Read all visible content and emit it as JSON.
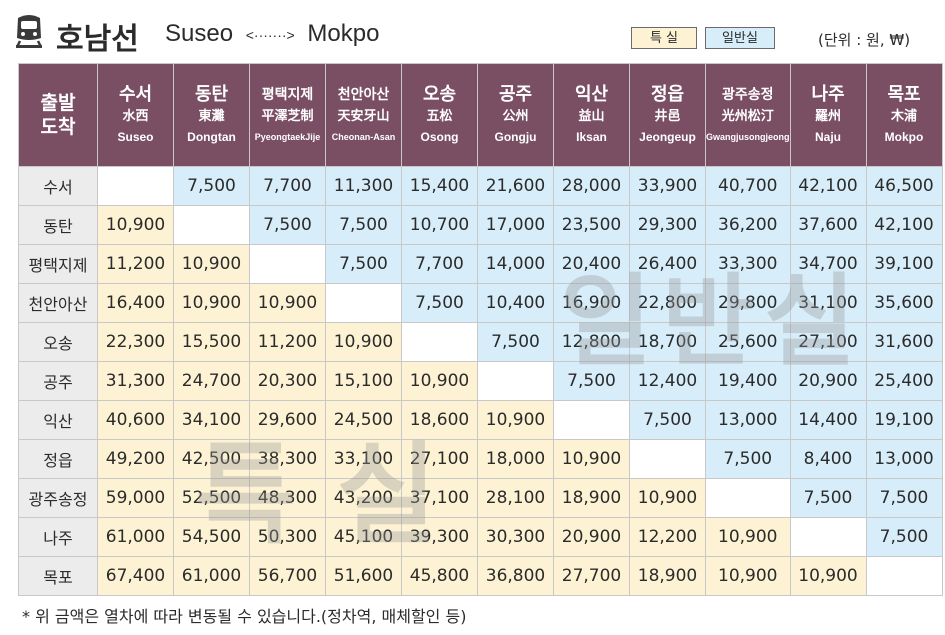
{
  "title": {
    "line_name": "호남선",
    "origin": "Suseo",
    "arrow": "<·······>",
    "terminus": "Mokpo"
  },
  "legend": {
    "special": "특 실",
    "general": "일반실",
    "unit": "(단위 : 원, ₩)"
  },
  "corner": {
    "top": "출발",
    "bottom": "도착"
  },
  "stations": [
    {
      "ko": "수서",
      "hanja": "水西",
      "en": "Suseo"
    },
    {
      "ko": "동탄",
      "hanja": "東灘",
      "en": "Dongtan"
    },
    {
      "ko": "평택지제",
      "hanja": "平澤芝制",
      "en": "PyeongtaekJije"
    },
    {
      "ko": "천안아산",
      "hanja": "天安牙山",
      "en": "Cheonan-Asan"
    },
    {
      "ko": "오송",
      "hanja": "五松",
      "en": "Osong"
    },
    {
      "ko": "공주",
      "hanja": "公州",
      "en": "Gongju"
    },
    {
      "ko": "익산",
      "hanja": "益山",
      "en": "Iksan"
    },
    {
      "ko": "정읍",
      "hanja": "井邑",
      "en": "Jeongeup"
    },
    {
      "ko": "광주송정",
      "hanja": "光州松汀",
      "en": "Gwangjusongjeong"
    },
    {
      "ko": "나주",
      "hanja": "羅州",
      "en": "Naju"
    },
    {
      "ko": "목포",
      "hanja": "木浦",
      "en": "Mokpo"
    }
  ],
  "rows": [
    {
      "station": "수서",
      "fares": [
        "",
        "7,500",
        "7,700",
        "11,300",
        "15,400",
        "21,600",
        "28,000",
        "33,900",
        "40,700",
        "42,100",
        "46,500"
      ]
    },
    {
      "station": "동탄",
      "fares": [
        "10,900",
        "",
        "7,500",
        "7,500",
        "10,700",
        "17,000",
        "23,500",
        "29,300",
        "36,200",
        "37,600",
        "42,100"
      ]
    },
    {
      "station": "평택지제",
      "fares": [
        "11,200",
        "10,900",
        "",
        "7,500",
        "7,700",
        "14,000",
        "20,400",
        "26,400",
        "33,300",
        "34,700",
        "39,100"
      ]
    },
    {
      "station": "천안아산",
      "fares": [
        "16,400",
        "10,900",
        "10,900",
        "",
        "7,500",
        "10,400",
        "16,900",
        "22,800",
        "29,800",
        "31,100",
        "35,600"
      ]
    },
    {
      "station": "오송",
      "fares": [
        "22,300",
        "15,500",
        "11,200",
        "10,900",
        "",
        "7,500",
        "12,800",
        "18,700",
        "25,600",
        "27,100",
        "31,600"
      ]
    },
    {
      "station": "공주",
      "fares": [
        "31,300",
        "24,700",
        "20,300",
        "15,100",
        "10,900",
        "",
        "7,500",
        "12,400",
        "19,400",
        "20,900",
        "25,400"
      ]
    },
    {
      "station": "익산",
      "fares": [
        "40,600",
        "34,100",
        "29,600",
        "24,500",
        "18,600",
        "10,900",
        "",
        "7,500",
        "13,000",
        "14,400",
        "19,100"
      ]
    },
    {
      "station": "정읍",
      "fares": [
        "49,200",
        "42,500",
        "38,300",
        "33,100",
        "27,100",
        "18,000",
        "10,900",
        "",
        "7,500",
        "8,400",
        "13,000"
      ]
    },
    {
      "station": "광주송정",
      "fares": [
        "59,000",
        "52,500",
        "48,300",
        "43,200",
        "37,100",
        "28,100",
        "18,900",
        "10,900",
        "",
        "7,500",
        "7,500"
      ]
    },
    {
      "station": "나주",
      "fares": [
        "61,000",
        "54,500",
        "50,300",
        "45,100",
        "39,300",
        "30,300",
        "20,900",
        "12,200",
        "10,900",
        "",
        "7,500"
      ]
    },
    {
      "station": "목포",
      "fares": [
        "67,400",
        "61,000",
        "56,700",
        "51,600",
        "45,800",
        "36,800",
        "27,700",
        "18,900",
        "10,900",
        "10,900",
        ""
      ]
    }
  ],
  "watermarks": {
    "general": "일반실",
    "special": "특실"
  },
  "footnote": "* 위 금액은 열차에 따라 변동될 수 있습니다.(정차역, 매체할인 등)",
  "colors": {
    "header": "#7a4e63",
    "special_cell": "#fdf3d4",
    "general_cell": "#d7eefa"
  }
}
